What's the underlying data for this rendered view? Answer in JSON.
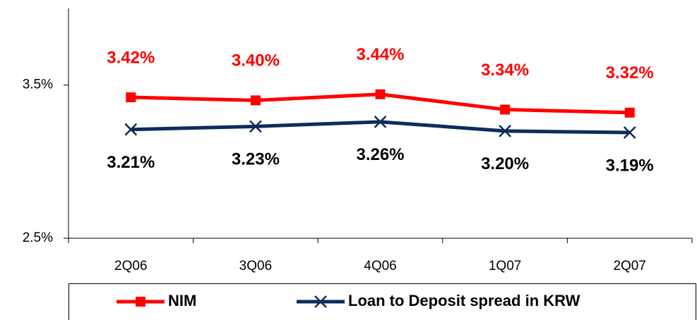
{
  "chart_data": {
    "type": "line",
    "categories": [
      "2Q06",
      "3Q06",
      "4Q06",
      "1Q07",
      "2Q07"
    ],
    "series": [
      {
        "name": "NIM",
        "color": "#ff0000",
        "marker": "square",
        "values": [
          3.42,
          3.4,
          3.44,
          3.34,
          3.32
        ],
        "value_labels": [
          "3.42%",
          "3.40%",
          "3.44%",
          "3.34%",
          "3.32%"
        ],
        "label_color": "#ff0000"
      },
      {
        "name": "Loan to Deposit spread in KRW",
        "color": "#0d2d5a",
        "marker": "x",
        "values": [
          3.21,
          3.23,
          3.26,
          3.2,
          3.19
        ],
        "value_labels": [
          "3.21%",
          "3.23%",
          "3.26%",
          "3.20%",
          "3.19%"
        ],
        "label_color": "#000000"
      }
    ],
    "ylim": [
      2.5,
      4.0
    ],
    "yticks": [
      {
        "value": 2.5,
        "label": "2.5%"
      },
      {
        "value": 3.5,
        "label": "3.5%"
      }
    ],
    "grid": false,
    "legend": "bottom"
  }
}
